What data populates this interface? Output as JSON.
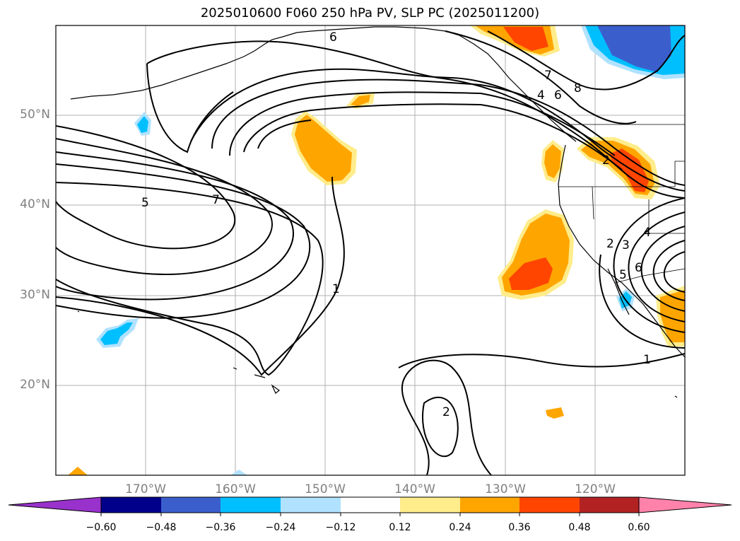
{
  "title": "2025010600 F060 250 hPa PV, SLP PC (2025011200)",
  "lat_labels": [
    "50°N",
    "40°N",
    "30°N",
    "20°N"
  ],
  "lon_labels": [
    "170°W",
    "160°W",
    "150°W",
    "140°W",
    "130°W",
    "120°W"
  ],
  "contour_labels": [
    "6",
    "7",
    "5",
    "1",
    "2",
    "7",
    "4",
    "6",
    "8",
    "2",
    "2",
    "3",
    "4",
    "5",
    "6",
    "1"
  ],
  "colorbar": {
    "ticks": [
      "−0.60",
      "−0.48",
      "−0.36",
      "−0.24",
      "−0.12",
      "0.12",
      "0.24",
      "0.36",
      "0.48",
      "0.60"
    ],
    "colors": [
      "#9932cc",
      "#00008b",
      "#3a5fcd",
      "#00bfff",
      "#b0e2ff",
      "#ffffff",
      "#ffec8b",
      "#ffa500",
      "#ff4500",
      "#b22222",
      "#ff82ab"
    ]
  }
}
